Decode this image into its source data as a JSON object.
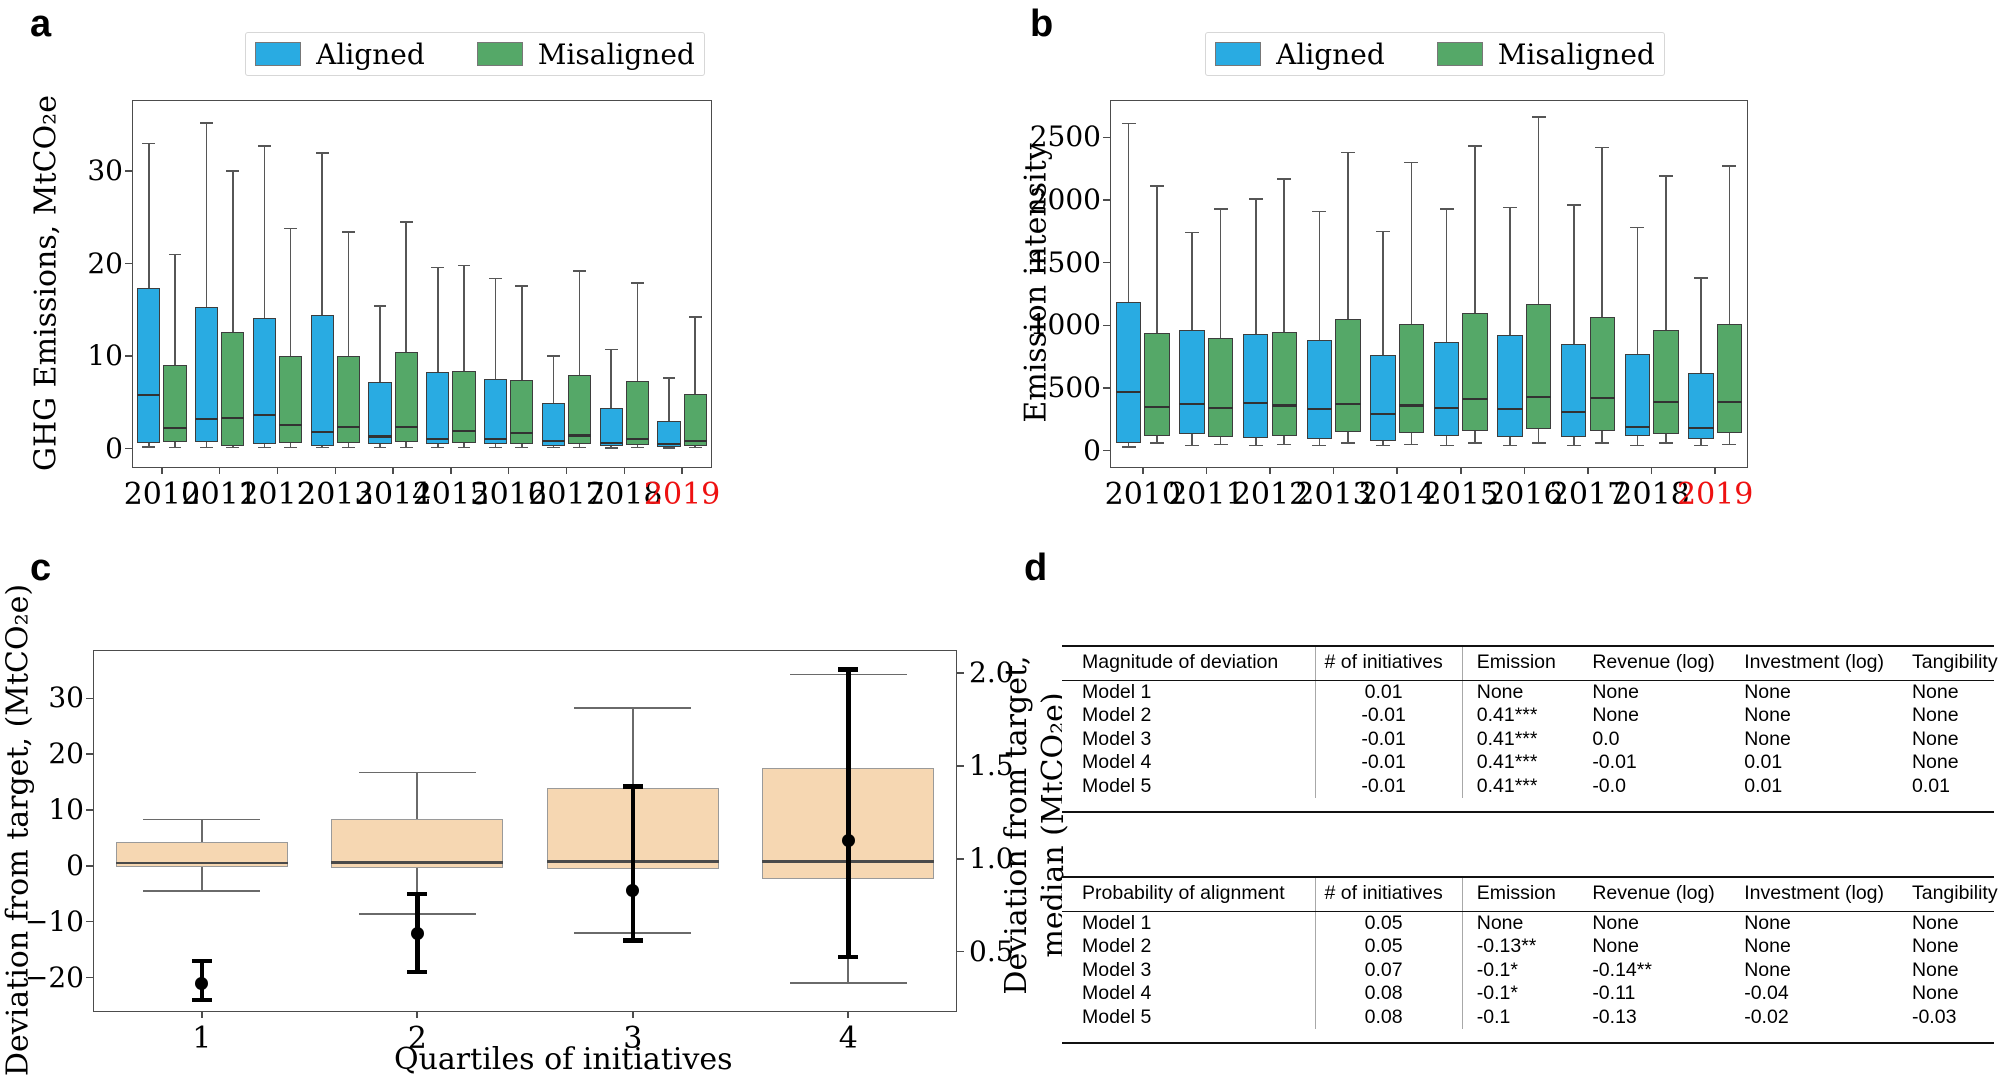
{
  "panels": {
    "a": {
      "label": "a",
      "ylabel": "GHG Emissions, MtCO₂e"
    },
    "b": {
      "label": "b",
      "ylabel": "Emission intensity"
    },
    "c": {
      "label": "c",
      "ylabel_left": "Deviation from target, (MtCO₂e)",
      "ylabel_right_line1": "Deviation from target,",
      "ylabel_right_line2": "median (MtCO₂e)",
      "xlabel": "Quartiles of initiatives"
    },
    "d": {
      "label": "d"
    }
  },
  "legend": {
    "items": [
      {
        "label": "Aligned",
        "color": "#29abe2"
      },
      {
        "label": "Misaligned",
        "color": "#55a868"
      }
    ]
  },
  "colors": {
    "aligned": "#29abe2",
    "misaligned": "#55a868",
    "quartile_box": "#f6d7b2",
    "highlight_year": "#ee1111",
    "point": "#000000"
  },
  "chart_data": [
    {
      "id": "a",
      "type": "box",
      "title": "",
      "ylabel": "GHG Emissions, MtCO₂e",
      "categories": [
        "2010",
        "2011",
        "2012",
        "2013",
        "2014",
        "2015",
        "2016",
        "2017",
        "2018",
        "2019"
      ],
      "highlight_category": "2019",
      "ylim": [
        -2,
        37.6
      ],
      "yticks": [
        {
          "v": 0,
          "t": "0"
        },
        {
          "v": 10,
          "t": "10"
        },
        {
          "v": 20,
          "t": "20"
        },
        {
          "v": 30,
          "t": "30"
        }
      ],
      "legend_position": "upper center",
      "grid": false,
      "box_values_order": [
        "whisker_low",
        "q1",
        "median",
        "q3",
        "whisker_high"
      ],
      "series": [
        {
          "name": "Aligned",
          "color": "#29abe2",
          "boxes": [
            [
              0.15,
              0.6,
              5.8,
              17.4,
              33.0
            ],
            [
              0.1,
              0.7,
              3.2,
              15.3,
              35.2
            ],
            [
              0.1,
              0.5,
              3.6,
              14.1,
              32.7
            ],
            [
              0.1,
              0.3,
              1.8,
              14.4,
              32.0
            ],
            [
              0.1,
              0.5,
              1.3,
              7.2,
              15.4
            ],
            [
              0.1,
              0.5,
              1.0,
              8.3,
              19.6
            ],
            [
              0.1,
              0.5,
              1.0,
              7.5,
              18.4
            ],
            [
              0.1,
              0.3,
              0.8,
              4.9,
              10.0
            ],
            [
              0.05,
              0.3,
              0.6,
              4.4,
              10.7
            ],
            [
              0.05,
              0.2,
              0.5,
              3.0,
              7.6
            ]
          ]
        },
        {
          "name": "Misaligned",
          "color": "#55a868",
          "boxes": [
            [
              0.1,
              0.7,
              2.2,
              9.0,
              21.0
            ],
            [
              0.1,
              0.3,
              3.3,
              12.6,
              30.0
            ],
            [
              0.1,
              0.6,
              2.5,
              10.0,
              23.8
            ],
            [
              0.1,
              0.6,
              2.3,
              10.0,
              23.4
            ],
            [
              0.1,
              0.7,
              2.3,
              10.4,
              24.5
            ],
            [
              0.1,
              0.6,
              1.9,
              8.4,
              19.8
            ],
            [
              0.1,
              0.5,
              1.7,
              7.4,
              17.6
            ],
            [
              0.1,
              0.5,
              1.4,
              8.0,
              19.2
            ],
            [
              0.1,
              0.4,
              1.0,
              7.3,
              17.9
            ],
            [
              0.1,
              0.3,
              0.8,
              5.9,
              14.2
            ]
          ]
        }
      ]
    },
    {
      "id": "b",
      "type": "box",
      "title": "",
      "ylabel": "Emission intensity",
      "categories": [
        "2010",
        "2011",
        "2012",
        "2013",
        "2014",
        "2015",
        "2016",
        "2017",
        "2018",
        "2019"
      ],
      "highlight_category": "2019",
      "ylim": [
        -130,
        2790
      ],
      "yticks": [
        {
          "v": 0,
          "t": "0"
        },
        {
          "v": 500,
          "t": "500"
        },
        {
          "v": 1000,
          "t": "1000"
        },
        {
          "v": 1500,
          "t": "1500"
        },
        {
          "v": 2000,
          "t": "2000"
        },
        {
          "v": 2500,
          "t": "2500"
        }
      ],
      "legend_position": "upper center",
      "grid": false,
      "box_values_order": [
        "whisker_low",
        "q1",
        "median",
        "q3",
        "whisker_high"
      ],
      "series": [
        {
          "name": "Aligned",
          "color": "#29abe2",
          "boxes": [
            [
              30,
              60,
              470,
              1190,
              2610
            ],
            [
              40,
              130,
              370,
              960,
              1740
            ],
            [
              40,
              100,
              380,
              930,
              2010
            ],
            [
              40,
              90,
              330,
              880,
              1910
            ],
            [
              40,
              80,
              290,
              760,
              1750
            ],
            [
              40,
              120,
              340,
              870,
              1930
            ],
            [
              40,
              110,
              330,
              920,
              1940
            ],
            [
              40,
              110,
              310,
              850,
              1960
            ],
            [
              40,
              120,
              190,
              770,
              1780
            ],
            [
              40,
              90,
              180,
              620,
              1380
            ]
          ]
        },
        {
          "name": "Misaligned",
          "color": "#55a868",
          "boxes": [
            [
              60,
              120,
              350,
              940,
              2110
            ],
            [
              50,
              110,
              340,
              900,
              1930
            ],
            [
              50,
              120,
              360,
              950,
              2170
            ],
            [
              60,
              150,
              370,
              1050,
              2380
            ],
            [
              50,
              140,
              360,
              1010,
              2300
            ],
            [
              60,
              160,
              410,
              1100,
              2430
            ],
            [
              60,
              170,
              430,
              1170,
              2660
            ],
            [
              60,
              160,
              420,
              1070,
              2420
            ],
            [
              60,
              130,
              390,
              960,
              2190
            ],
            [
              50,
              140,
              390,
              1010,
              2270
            ]
          ]
        }
      ]
    },
    {
      "id": "c",
      "type": "box",
      "title": "",
      "xlabel": "Quartiles of initiatives",
      "ylabel_left": "Deviation from target, (MtCO₂e)",
      "ylabel_right": "Deviation from target, median (MtCO₂e)",
      "categories": [
        "1",
        "2",
        "3",
        "4"
      ],
      "ylim": [
        -26,
        38.5
      ],
      "yticks": [
        {
          "v": -20,
          "t": "−20"
        },
        {
          "v": -10,
          "t": "−10"
        },
        {
          "v": 0,
          "t": "0"
        },
        {
          "v": 10,
          "t": "10"
        },
        {
          "v": 20,
          "t": "20"
        },
        {
          "v": 30,
          "t": "30"
        }
      ],
      "ylim_right": [
        0.18,
        2.12
      ],
      "yticks_right": [
        {
          "v": 0.5,
          "t": "0.5"
        },
        {
          "v": 1.0,
          "t": "1.0"
        },
        {
          "v": 1.5,
          "t": "1.5"
        },
        {
          "v": 2.0,
          "t": "2.0"
        }
      ],
      "grid": false,
      "box_color": "#f6d7b2",
      "box_values_order": [
        "whisker_low",
        "q1",
        "median",
        "q3",
        "whisker_high"
      ],
      "boxes": [
        [
          -4.5,
          -0.2,
          0.5,
          4.2,
          8.3
        ],
        [
          -8.6,
          -0.3,
          0.6,
          8.4,
          16.7
        ],
        [
          -12.0,
          -0.6,
          0.8,
          14.0,
          28.3
        ],
        [
          -21.0,
          -2.3,
          0.8,
          17.5,
          34.3
        ]
      ],
      "points_axis": "right",
      "points_values_order": [
        "err_low",
        "median",
        "err_high"
      ],
      "points": [
        [
          0.24,
          0.33,
          0.45
        ],
        [
          0.39,
          0.6,
          0.81
        ],
        [
          0.56,
          0.83,
          1.39
        ],
        [
          0.47,
          1.1,
          2.02
        ]
      ]
    },
    {
      "id": "d1",
      "type": "table",
      "columns": [
        "Magnitude of deviation",
        "# of initiatives",
        "Emission",
        "Revenue (log)",
        "Investment (log)",
        "Tangibility"
      ],
      "rows": [
        [
          "Model 1",
          "0.01",
          "None",
          "None",
          "None",
          "None"
        ],
        [
          "Model 2",
          "-0.01",
          "0.41***",
          "None",
          "None",
          "None"
        ],
        [
          "Model 3",
          "-0.01",
          "0.41***",
          "0.0",
          "None",
          "None"
        ],
        [
          "Model 4",
          "-0.01",
          "0.41***",
          "-0.01",
          "0.01",
          "None"
        ],
        [
          "Model 5",
          "-0.01",
          "0.41***",
          "-0.0",
          "0.01",
          "0.01"
        ]
      ]
    },
    {
      "id": "d2",
      "type": "table",
      "columns": [
        "Probability of alignment",
        "# of initiatives",
        "Emission",
        "Revenue (log)",
        "Investment (log)",
        "Tangibility"
      ],
      "rows": [
        [
          "Model 1",
          "0.05",
          "None",
          "None",
          "None",
          "None"
        ],
        [
          "Model 2",
          "0.05",
          "-0.13**",
          "None",
          "None",
          "None"
        ],
        [
          "Model 3",
          "0.07",
          "-0.1*",
          "-0.14**",
          "None",
          "None"
        ],
        [
          "Model 4",
          "0.08",
          "-0.1*",
          "-0.11",
          "-0.04",
          "None"
        ],
        [
          "Model 5",
          "0.08",
          "-0.1",
          "-0.13",
          "-0.02",
          "-0.03"
        ]
      ]
    }
  ]
}
